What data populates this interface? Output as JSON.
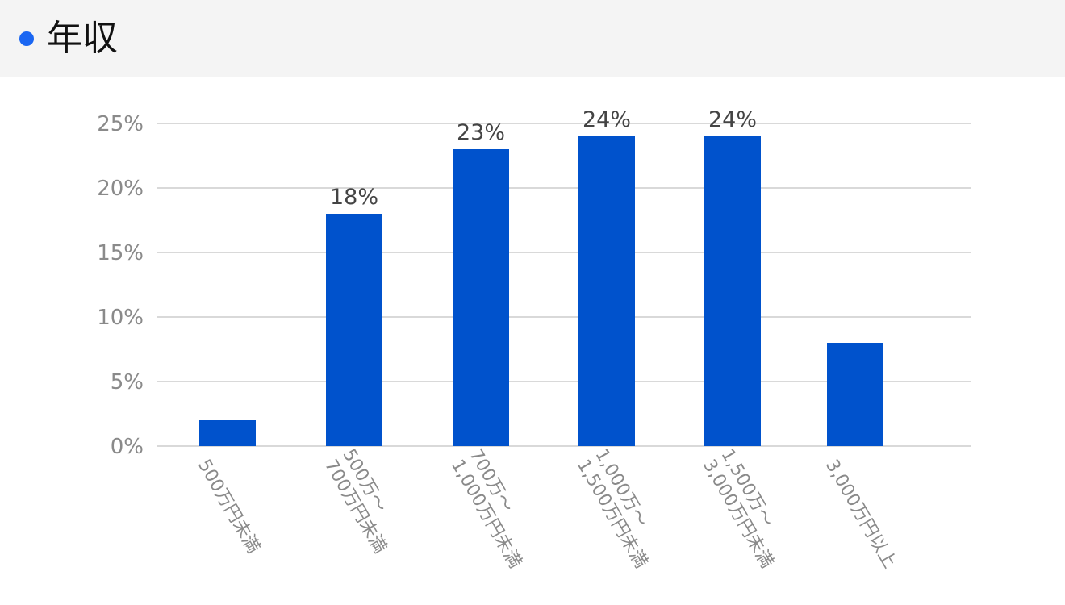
{
  "header": {
    "title": "年収"
  },
  "colors": {
    "accent_dot": "#1a66f2",
    "bar": "#0052cc",
    "grid": "#d9d9d9"
  },
  "chart_data": {
    "type": "bar",
    "title": "年収",
    "categories": [
      [
        "500万円未満"
      ],
      [
        "500万～",
        "700万円未満"
      ],
      [
        "700万～",
        "1,000万円未満"
      ],
      [
        "1,000万～",
        "1,500万円未満"
      ],
      [
        "1,500万～",
        "3,000万円未満"
      ],
      [
        "3,000万円以上"
      ]
    ],
    "values": [
      2,
      18,
      23,
      24,
      24,
      8
    ],
    "data_labels": [
      "",
      "18%",
      "23%",
      "24%",
      "24%",
      ""
    ],
    "y_ticks": [
      "0%",
      "5%",
      "10%",
      "15%",
      "20%",
      "25%"
    ],
    "ylim": [
      0,
      25
    ],
    "grid": true,
    "legend": "none"
  }
}
